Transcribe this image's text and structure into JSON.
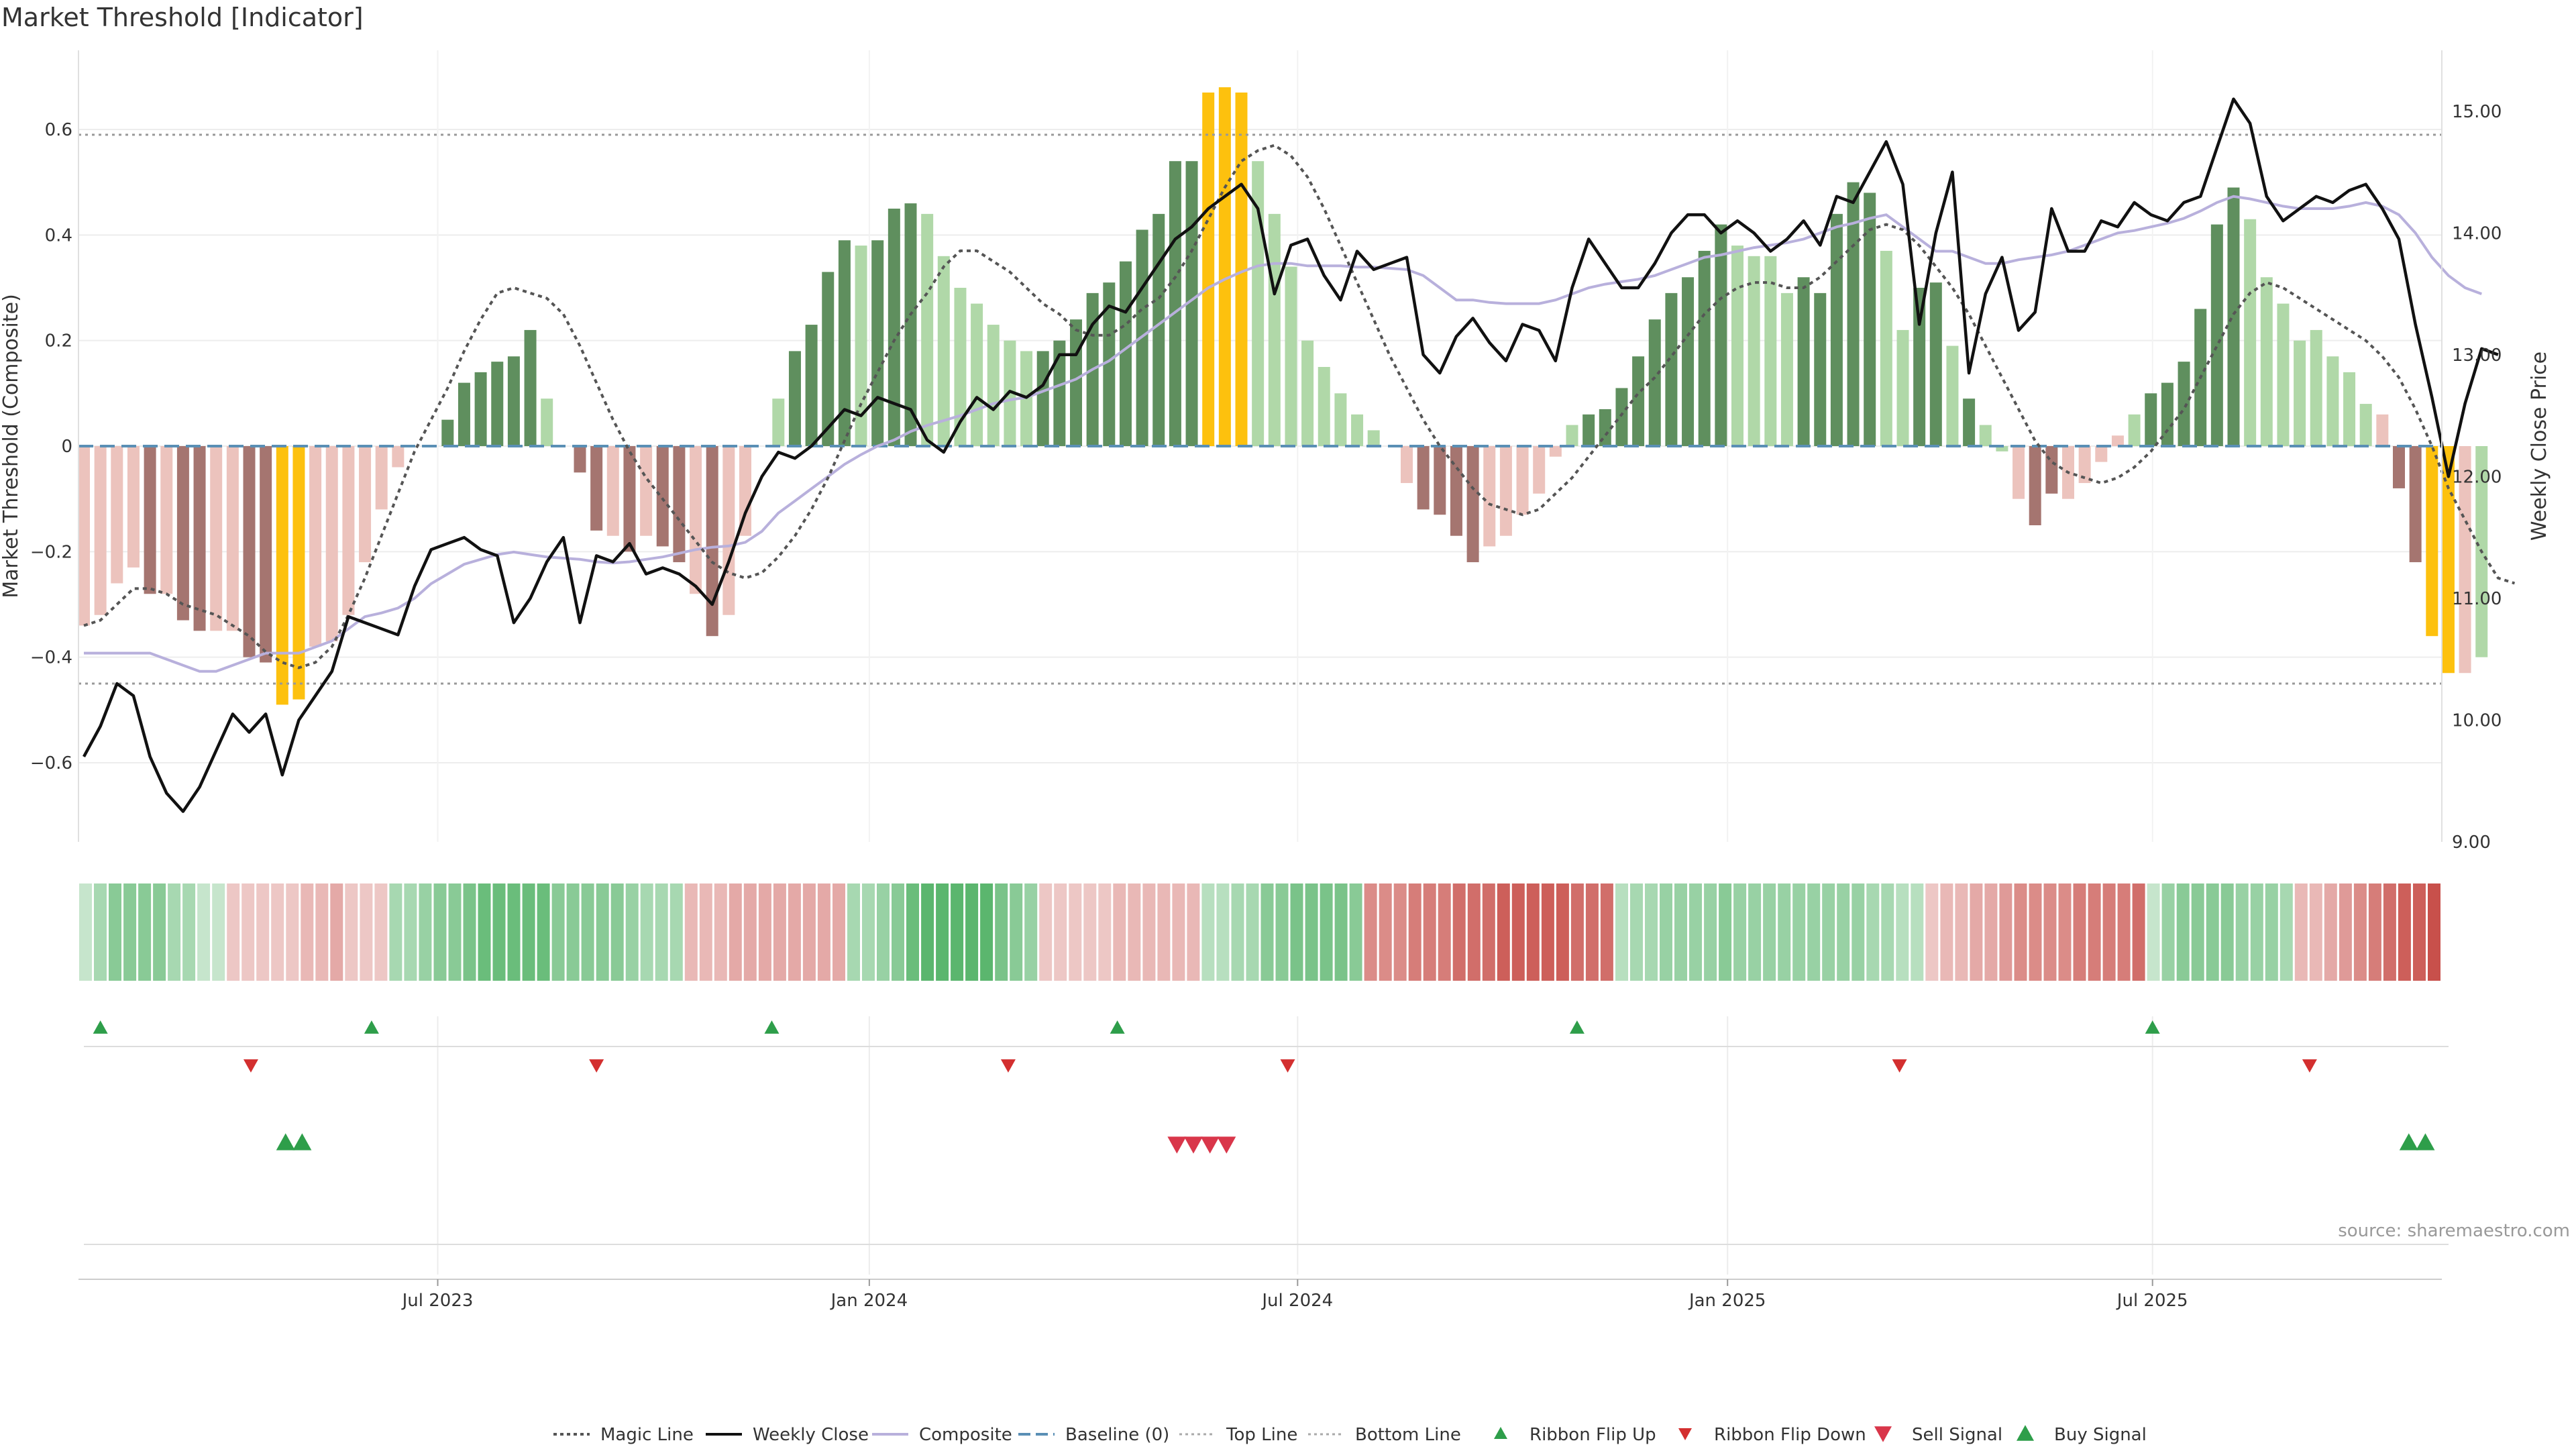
{
  "title": "Market Threshold [Indicator]",
  "source": "source: sharemaestro.com",
  "colors": {
    "gain_strong": "#5f8f5e",
    "gain_weak": "#b0d8a8",
    "loss_strong": "#a57570",
    "loss_weak": "#ecc3bd",
    "extreme": "#fdc10e",
    "weekly_close": "#111111",
    "composite": "#b8b0dc",
    "magic_line": "#555555",
    "baseline": "#5a8fb5",
    "threshold_line": "#999999",
    "ribbon_up": "#2e9e4a",
    "ribbon_down": "#d32f2f"
  },
  "chart_data": {
    "type": "bar",
    "title": "Market Threshold [Indicator]",
    "ylabel": "Market Threshold (Composite)",
    "y2label": "Weekly Close Price",
    "ylim": [
      -0.75,
      0.75
    ],
    "y2lim": [
      9.0,
      15.5
    ],
    "yticks": [
      "0.6",
      "0.4",
      "0.2",
      "0",
      "−0.2",
      "−0.4",
      "−0.6"
    ],
    "yticks_values": [
      0.6,
      0.4,
      0.2,
      0,
      -0.2,
      -0.4,
      -0.6
    ],
    "y2ticks": [
      "15.00",
      "14.00",
      "13.00",
      "12.00",
      "11.00",
      "10.00",
      "9.00"
    ],
    "y2ticks_values": [
      15,
      14,
      13,
      12,
      11,
      10,
      9
    ],
    "xticks": [
      "Jul 2023",
      "Jan 2024",
      "Jul 2024",
      "Jan 2025",
      "Jul 2025"
    ],
    "xticks_week_index": [
      21.4,
      47.5,
      73.4,
      99.4,
      125.1
    ],
    "top_line": 0.59,
    "bottom_line": -0.45,
    "composite_bars": [
      -0.34,
      -0.32,
      -0.26,
      -0.23,
      -0.28,
      -0.28,
      -0.33,
      -0.35,
      -0.35,
      -0.35,
      -0.4,
      -0.41,
      -0.49,
      -0.48,
      -0.38,
      -0.37,
      -0.32,
      -0.22,
      -0.12,
      -0.04,
      0.0,
      0.0,
      0.05,
      0.12,
      0.14,
      0.16,
      0.17,
      0.22,
      0.09,
      0.0,
      -0.05,
      -0.16,
      -0.17,
      -0.2,
      -0.17,
      -0.19,
      -0.22,
      -0.28,
      -0.36,
      -0.32,
      -0.17,
      0.0,
      0.09,
      0.18,
      0.23,
      0.33,
      0.39,
      0.38,
      0.39,
      0.45,
      0.46,
      0.44,
      0.36,
      0.3,
      0.27,
      0.23,
      0.2,
      0.18,
      0.18,
      0.2,
      0.24,
      0.29,
      0.31,
      0.35,
      0.41,
      0.44,
      0.54,
      0.54,
      0.67,
      0.68,
      0.67,
      0.54,
      0.44,
      0.34,
      0.2,
      0.15,
      0.1,
      0.06,
      0.03,
      0.0,
      -0.07,
      -0.12,
      -0.13,
      -0.17,
      -0.22,
      -0.19,
      -0.17,
      -0.13,
      -0.09,
      -0.02,
      0.04,
      0.06,
      0.07,
      0.11,
      0.17,
      0.24,
      0.29,
      0.32,
      0.37,
      0.42,
      0.38,
      0.36,
      0.36,
      0.29,
      0.32,
      0.29,
      0.44,
      0.5,
      0.48,
      0.37,
      0.22,
      0.3,
      0.31,
      0.19,
      0.09,
      0.04,
      -0.01,
      -0.1,
      -0.15,
      -0.09,
      -0.1,
      -0.07,
      -0.03,
      0.02,
      0.06,
      0.1,
      0.12,
      0.16,
      0.26,
      0.42,
      0.49,
      0.43,
      0.32,
      0.27,
      0.2,
      0.22,
      0.17,
      0.14,
      0.08,
      0.06,
      -0.08,
      -0.22,
      -0.36,
      -0.43,
      -0.43,
      -0.4
    ],
    "bar_state": [
      "lw",
      "lw",
      "lw",
      "lw",
      "ls",
      "lw",
      "ls",
      "ls",
      "lw",
      "lw",
      "ls",
      "ls",
      "ex",
      "ex",
      "lw",
      "lw",
      "lw",
      "lw",
      "lw",
      "lw",
      "gw",
      "gw",
      "gs",
      "gs",
      "gs",
      "gs",
      "gs",
      "gs",
      "gw",
      "gw",
      "ls",
      "ls",
      "lw",
      "ls",
      "lw",
      "ls",
      "ls",
      "lw",
      "ls",
      "lw",
      "lw",
      "lw",
      "gw",
      "gs",
      "gs",
      "gs",
      "gs",
      "gw",
      "gs",
      "gs",
      "gs",
      "gw",
      "gw",
      "gw",
      "gw",
      "gw",
      "gw",
      "gw",
      "gs",
      "gs",
      "gs",
      "gs",
      "gs",
      "gs",
      "gs",
      "gs",
      "gs",
      "gs",
      "ex",
      "ex",
      "ex",
      "gw",
      "gw",
      "gw",
      "gw",
      "gw",
      "gw",
      "gw",
      "gw",
      "gw",
      "lw",
      "ls",
      "ls",
      "ls",
      "ls",
      "lw",
      "lw",
      "lw",
      "lw",
      "lw",
      "gw",
      "gs",
      "gs",
      "gs",
      "gs",
      "gs",
      "gs",
      "gs",
      "gs",
      "gs",
      "gw",
      "gw",
      "gw",
      "gw",
      "gs",
      "gs",
      "gs",
      "gs",
      "gs",
      "gw",
      "gw",
      "gs",
      "gs",
      "gw",
      "gs",
      "gw",
      "gw",
      "lw",
      "ls",
      "ls",
      "lw",
      "lw",
      "lw",
      "lw",
      "gw",
      "gs",
      "gs",
      "gs",
      "gs",
      "gs",
      "gs",
      "gw",
      "gw",
      "gw",
      "gw",
      "gw",
      "gw",
      "gw",
      "gw",
      "lw",
      "ls",
      "ls",
      "ex",
      "ex",
      "lw"
    ],
    "weekly_close": [
      9.7,
      9.95,
      10.3,
      10.2,
      9.7,
      9.4,
      9.25,
      9.45,
      9.75,
      10.05,
      9.9,
      10.05,
      9.55,
      10.0,
      10.2,
      10.4,
      10.85,
      10.8,
      10.75,
      10.7,
      11.1,
      11.4,
      11.45,
      11.5,
      11.4,
      11.35,
      10.8,
      11.0,
      11.3,
      11.5,
      10.8,
      11.35,
      11.3,
      11.45,
      11.2,
      11.25,
      11.2,
      11.1,
      10.95,
      11.3,
      11.7,
      12.0,
      12.2,
      12.15,
      12.25,
      12.4,
      12.55,
      12.5,
      12.65,
      12.6,
      12.55,
      12.3,
      12.2,
      12.45,
      12.65,
      12.55,
      12.7,
      12.65,
      12.75,
      13.0,
      13.0,
      13.25,
      13.4,
      13.35,
      13.55,
      13.75,
      13.95,
      14.05,
      14.2,
      14.3,
      14.4,
      14.2,
      13.5,
      13.9,
      13.95,
      13.65,
      13.45,
      13.85,
      13.7,
      13.75,
      13.8,
      13.0,
      12.85,
      13.15,
      13.3,
      13.1,
      12.95,
      13.25,
      13.2,
      12.95,
      13.55,
      13.95,
      13.75,
      13.55,
      13.55,
      13.75,
      14.0,
      14.15,
      14.15,
      14.0,
      14.1,
      14.0,
      13.85,
      13.95,
      14.1,
      13.9,
      14.3,
      14.25,
      14.5,
      14.75,
      14.4,
      13.25,
      14.0,
      14.5,
      12.85,
      13.5,
      13.8,
      13.2,
      13.35,
      14.2,
      13.85,
      13.85,
      14.1,
      14.05,
      14.25,
      14.15,
      14.1,
      14.25,
      14.3,
      14.7,
      15.1,
      14.9,
      14.3,
      14.1,
      14.2,
      14.3,
      14.25,
      14.35,
      14.4,
      14.2,
      13.95,
      13.25,
      12.65,
      12.0,
      12.6,
      13.05,
      13.0
    ],
    "magic_line": [
      -0.34,
      -0.33,
      -0.3,
      -0.27,
      -0.27,
      -0.28,
      -0.3,
      -0.31,
      -0.32,
      -0.34,
      -0.36,
      -0.39,
      -0.41,
      -0.42,
      -0.41,
      -0.38,
      -0.32,
      -0.25,
      -0.17,
      -0.09,
      -0.01,
      0.05,
      0.11,
      0.18,
      0.24,
      0.29,
      0.3,
      0.29,
      0.28,
      0.25,
      0.19,
      0.12,
      0.05,
      -0.01,
      -0.06,
      -0.1,
      -0.14,
      -0.18,
      -0.22,
      -0.24,
      -0.25,
      -0.24,
      -0.21,
      -0.17,
      -0.12,
      -0.06,
      0.01,
      0.08,
      0.14,
      0.2,
      0.25,
      0.29,
      0.34,
      0.37,
      0.37,
      0.35,
      0.33,
      0.3,
      0.27,
      0.25,
      0.22,
      0.21,
      0.21,
      0.23,
      0.26,
      0.28,
      0.32,
      0.37,
      0.43,
      0.49,
      0.54,
      0.56,
      0.57,
      0.55,
      0.51,
      0.45,
      0.38,
      0.31,
      0.24,
      0.17,
      0.11,
      0.05,
      0.0,
      -0.04,
      -0.08,
      -0.11,
      -0.12,
      -0.13,
      -0.12,
      -0.09,
      -0.06,
      -0.02,
      0.02,
      0.06,
      0.1,
      0.13,
      0.17,
      0.21,
      0.25,
      0.28,
      0.3,
      0.31,
      0.31,
      0.3,
      0.3,
      0.32,
      0.35,
      0.38,
      0.41,
      0.42,
      0.41,
      0.38,
      0.34,
      0.3,
      0.25,
      0.19,
      0.13,
      0.07,
      0.01,
      -0.03,
      -0.05,
      -0.06,
      -0.07,
      -0.06,
      -0.04,
      -0.01,
      0.03,
      0.07,
      0.13,
      0.19,
      0.25,
      0.29,
      0.31,
      0.3,
      0.28,
      0.26,
      0.24,
      0.22,
      0.2,
      0.17,
      0.13,
      0.07,
      0.0,
      -0.08,
      -0.14,
      -0.2,
      -0.25,
      -0.26
    ],
    "composite_line": [
      10.55,
      10.55,
      10.55,
      10.55,
      10.55,
      10.5,
      10.45,
      10.4,
      10.4,
      10.45,
      10.5,
      10.55,
      10.55,
      10.55,
      10.6,
      10.65,
      10.75,
      10.85,
      10.88,
      10.92,
      11.0,
      11.12,
      11.2,
      11.28,
      11.32,
      11.36,
      11.38,
      11.36,
      11.34,
      11.33,
      11.32,
      11.3,
      11.29,
      11.3,
      11.32,
      11.34,
      11.37,
      11.4,
      11.42,
      11.43,
      11.46,
      11.55,
      11.7,
      11.8,
      11.9,
      12.0,
      12.1,
      12.18,
      12.25,
      12.3,
      12.37,
      12.42,
      12.46,
      12.5,
      12.55,
      12.6,
      12.63,
      12.65,
      12.7,
      12.75,
      12.8,
      12.88,
      12.95,
      13.05,
      13.15,
      13.25,
      13.35,
      13.45,
      13.55,
      13.62,
      13.68,
      13.73,
      13.75,
      13.75,
      13.73,
      13.73,
      13.73,
      13.72,
      13.72,
      13.71,
      13.7,
      13.65,
      13.55,
      13.45,
      13.45,
      13.43,
      13.42,
      13.42,
      13.42,
      13.45,
      13.5,
      13.55,
      13.58,
      13.6,
      13.62,
      13.65,
      13.7,
      13.75,
      13.8,
      13.82,
      13.85,
      13.88,
      13.9,
      13.92,
      13.95,
      14.0,
      14.05,
      14.08,
      14.12,
      14.15,
      14.05,
      13.95,
      13.85,
      13.85,
      13.8,
      13.75,
      13.75,
      13.78,
      13.8,
      13.82,
      13.85,
      13.9,
      13.95,
      14.0,
      14.02,
      14.05,
      14.08,
      14.12,
      14.18,
      14.25,
      14.3,
      14.28,
      14.25,
      14.22,
      14.2,
      14.2,
      14.2,
      14.22,
      14.25,
      14.22,
      14.15,
      14.0,
      13.8,
      13.65,
      13.55,
      13.5
    ],
    "ribbon_level": [
      0.2,
      0.4,
      0.6,
      0.6,
      0.6,
      0.6,
      0.4,
      0.4,
      0.2,
      0.2,
      -0.2,
      -0.2,
      -0.2,
      -0.2,
      -0.2,
      -0.3,
      -0.3,
      -0.4,
      -0.2,
      -0.2,
      -0.2,
      0.4,
      0.4,
      0.5,
      0.6,
      0.6,
      0.7,
      0.8,
      0.8,
      0.8,
      0.8,
      0.8,
      0.6,
      0.6,
      0.6,
      0.6,
      0.6,
      0.5,
      0.4,
      0.4,
      0.4,
      -0.3,
      -0.3,
      -0.3,
      -0.4,
      -0.4,
      -0.4,
      -0.4,
      -0.4,
      -0.4,
      -0.4,
      -0.4,
      0.4,
      0.4,
      0.5,
      0.6,
      0.8,
      0.9,
      0.9,
      0.9,
      0.9,
      0.9,
      0.7,
      0.6,
      0.5,
      -0.2,
      -0.2,
      -0.2,
      -0.2,
      -0.2,
      -0.3,
      -0.3,
      -0.3,
      -0.3,
      -0.3,
      -0.3,
      0.3,
      0.3,
      0.4,
      0.4,
      0.6,
      0.6,
      0.7,
      0.7,
      0.7,
      0.7,
      0.6,
      -0.6,
      -0.6,
      -0.6,
      -0.7,
      -0.7,
      -0.7,
      -0.8,
      -0.8,
      -0.8,
      -0.9,
      -0.9,
      -0.9,
      -0.9,
      -0.9,
      -0.8,
      -0.8,
      -0.8,
      0.3,
      0.4,
      0.4,
      0.5,
      0.5,
      0.5,
      0.5,
      0.6,
      0.5,
      0.5,
      0.5,
      0.5,
      0.5,
      0.5,
      0.5,
      0.5,
      0.5,
      0.4,
      0.4,
      0.3,
      0.3,
      -0.2,
      -0.3,
      -0.3,
      -0.4,
      -0.4,
      -0.5,
      -0.6,
      -0.6,
      -0.6,
      -0.6,
      -0.7,
      -0.7,
      -0.7,
      -0.7,
      -0.8,
      0.2,
      0.5,
      0.6,
      0.6,
      0.6,
      0.6,
      0.5,
      0.5,
      0.5,
      0.4,
      -0.3,
      -0.3,
      -0.4,
      -0.5,
      -0.6,
      -0.7,
      -0.8,
      -0.9,
      -0.9,
      -1.0
    ],
    "ribbon_flip_up_week": [
      1,
      17.4,
      41.6,
      62.5,
      90.3,
      125.1
    ],
    "ribbon_flip_down_week": [
      10.1,
      31,
      55.9,
      72.8,
      109.8,
      134.6
    ],
    "sell_signal_week": [
      66.1,
      67.1,
      68.1,
      69.1
    ],
    "buy_signal_week": [
      12.2,
      13.2,
      140.6,
      141.6
    ],
    "legend": [
      "Magic Line",
      "Weekly Close",
      "Composite",
      "Baseline (0)",
      "Top Line",
      "Bottom Line",
      "Ribbon Flip Up",
      "Ribbon Flip Down",
      "Sell Signal",
      "Buy Signal"
    ]
  }
}
